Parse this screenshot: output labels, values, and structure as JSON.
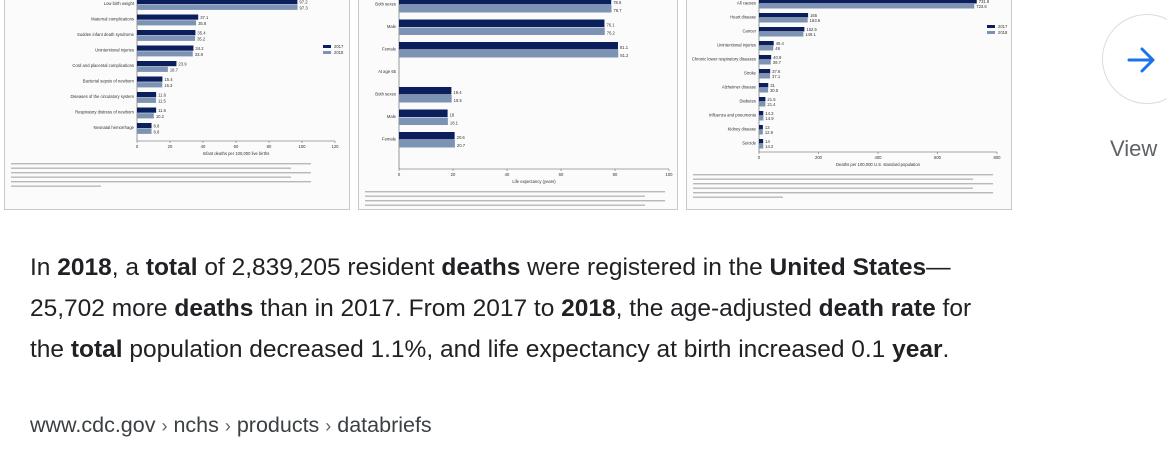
{
  "thumbnails": [
    {
      "id": "infant-deaths",
      "labels": [
        "Low birth weight",
        "Maternal complications",
        "Sudden infant death syndrome",
        "Unintentional injuries",
        "Cord and placental complications",
        "Bacterial sepsis of newborn",
        "Diseases of the circulatory system",
        "Respiratory distress of newborn",
        "Neonatal hemorrhage"
      ],
      "values_2017": [
        97.2,
        37.1,
        35.4,
        34.2,
        23.9,
        15.4,
        11.6,
        11.6,
        8.8
      ],
      "values_2018": [
        97.3,
        35.8,
        35.2,
        33.8,
        18.7,
        15.3,
        11.5,
        10.2,
        8.8
      ],
      "legend": [
        "2017",
        "2018"
      ],
      "ticks": [
        "0",
        "20",
        "40",
        "60",
        "80",
        "100",
        "120"
      ],
      "xlabel": "Infant deaths per 100,000 live births"
    },
    {
      "id": "life-expectancy",
      "labels": [
        "Both sexes",
        "Male",
        "Female",
        "At age 65",
        "Both sexes",
        "Male",
        "Female"
      ],
      "values_2017": [
        78.6,
        76.1,
        81.1,
        null,
        19.4,
        18.0,
        20.6
      ],
      "values_2018": [
        78.7,
        76.2,
        81.2,
        null,
        19.5,
        18.1,
        20.7
      ],
      "ticks": [
        "0",
        "20",
        "40",
        "60",
        "80",
        "100"
      ],
      "xlabel": "Life expectancy (years)"
    },
    {
      "id": "leading-causes",
      "labels": [
        "All causes",
        "Heart disease",
        "Cancer",
        "Unintentional injuries",
        "Chronic lower respiratory diseases",
        "Stroke",
        "Alzheimer disease",
        "Diabetes",
        "Influenza and pneumonia",
        "Kidney disease",
        "Suicide"
      ],
      "values_2017": [
        731.9,
        165.0,
        152.5,
        49.4,
        40.9,
        37.6,
        31.0,
        21.5,
        14.3,
        13.0,
        14.0
      ],
      "values_2018": [
        723.6,
        163.6,
        149.1,
        48.0,
        39.7,
        37.1,
        30.5,
        21.4,
        14.9,
        12.9,
        14.2
      ],
      "legend": [
        "2017",
        "2018"
      ],
      "ticks": [
        "0",
        "200",
        "400",
        "600",
        "800"
      ],
      "xlabel": "Deaths per 100,000 U.S. standard population"
    }
  ],
  "view_button": {
    "label": "View",
    "icon": "arrow-right-icon",
    "accent": "#1a73e8"
  },
  "snippet": {
    "line1": [
      {
        "t": "In ",
        "b": false
      },
      {
        "t": "2018",
        "b": true
      },
      {
        "t": ", a ",
        "b": false
      },
      {
        "t": "total",
        "b": true
      },
      {
        "t": " of 2,839,205 resident ",
        "b": false
      },
      {
        "t": "deaths",
        "b": true
      },
      {
        "t": " were registered in the ",
        "b": false
      },
      {
        "t": "United States",
        "b": true
      },
      {
        "t": "—",
        "b": false
      }
    ],
    "line2": [
      {
        "t": "25,702 more ",
        "b": false
      },
      {
        "t": "deaths",
        "b": true
      },
      {
        "t": " than in 2017. From 2017 to ",
        "b": false
      },
      {
        "t": "2018",
        "b": true
      },
      {
        "t": ", the age-adjusted ",
        "b": false
      },
      {
        "t": "death rate",
        "b": true
      },
      {
        "t": " for",
        "b": false
      }
    ],
    "line3": [
      {
        "t": "the ",
        "b": false
      },
      {
        "t": "total",
        "b": true
      },
      {
        "t": " population decreased 1.1%, and life expectancy at birth increased 0.1 ",
        "b": false
      },
      {
        "t": "year",
        "b": true
      },
      {
        "t": ".",
        "b": false
      }
    ]
  },
  "breadcrumb": {
    "items": [
      "www.cdc.gov",
      "nchs",
      "products",
      "databriefs"
    ],
    "separator": "›"
  },
  "colors": {
    "series_2017": "#0b1f5c",
    "series_2018": "#7d93b3",
    "text": "#202124",
    "muted": "#5f6368"
  }
}
